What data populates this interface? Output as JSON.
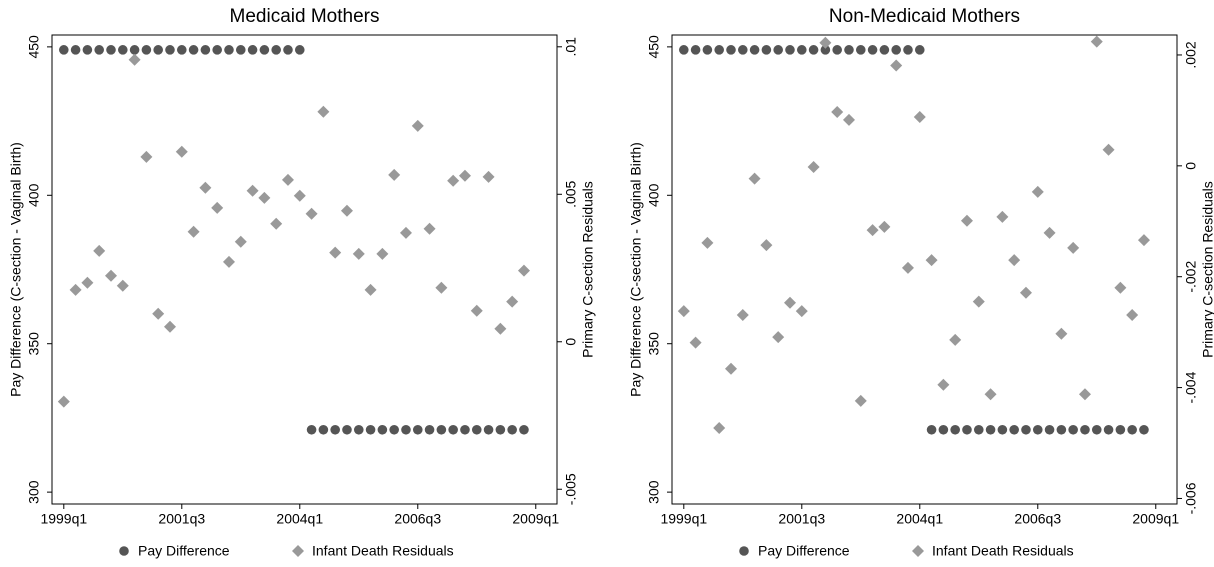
{
  "chart_data": [
    {
      "type": "scatter",
      "title": "Medicaid Mothers",
      "y_label": "Pay Difference (C-section - Vaginal Birth)",
      "y2_label": "Primary C-section Residuals",
      "x": [
        156,
        157,
        158,
        159,
        160,
        161,
        162,
        163,
        164,
        165,
        166,
        167,
        168,
        169,
        170,
        171,
        172,
        173,
        174,
        175,
        176,
        177,
        178,
        179,
        180,
        181,
        182,
        183,
        184,
        185,
        186,
        187,
        188,
        189,
        190,
        191,
        192,
        193,
        194,
        195
      ],
      "xlim": [
        155,
        197.8
      ],
      "xticks": [
        {
          "value": 156,
          "label": "1999q1"
        },
        {
          "value": 166,
          "label": "2001q3"
        },
        {
          "value": 176,
          "label": "2004q1"
        },
        {
          "value": 186,
          "label": "2006q3"
        },
        {
          "value": 196,
          "label": "2009q1"
        }
      ],
      "ylim": [
        296,
        454
      ],
      "yticks": [
        300,
        350,
        400,
        450
      ],
      "y2lim": [
        -0.0055,
        0.0104
      ],
      "y2ticks": [
        {
          "value": -0.005,
          "label": "-.005"
        },
        0,
        {
          "value": 0.005,
          "label": ".005"
        },
        {
          "value": 0.01,
          "label": ".01"
        }
      ],
      "series": [
        {
          "name": "Pay Difference",
          "color": "#555555",
          "marker": "circle",
          "values": [
            449,
            449,
            449,
            449,
            449,
            449,
            449,
            449,
            449,
            449,
            449,
            449,
            449,
            449,
            449,
            449,
            449,
            449,
            449,
            449,
            449,
            321,
            321,
            321,
            321,
            321,
            321,
            321,
            321,
            321,
            321,
            321,
            321,
            321,
            321,
            321,
            321,
            321,
            321,
            321
          ]
        },
        {
          "name": "Infant Death Residuals",
          "color": "#999999",
          "marker": "diamond",
          "axis": "y2",
          "values": [
            -0.00203,
            0.00176,
            0.002,
            0.00308,
            0.00224,
            0.0019,
            0.00956,
            0.00627,
            0.00095,
            0.00051,
            0.00644,
            0.00373,
            0.00522,
            0.00454,
            0.00271,
            0.00339,
            0.00512,
            0.00488,
            0.004,
            0.00549,
            0.00495,
            0.00434,
            0.0078,
            0.00302,
            0.00444,
            0.00298,
            0.00176,
            0.00298,
            0.00566,
            0.00369,
            0.00732,
            0.00383,
            0.00183,
            0.00546,
            0.00563,
            0.00105,
            0.00559,
            0.00044,
            0.00136,
            0.00241
          ]
        }
      ]
    },
    {
      "type": "scatter",
      "title": "Non-Medicaid Mothers",
      "y_label": "Pay Difference (C-section - Vaginal Birth)",
      "y2_label": "Primary C-section Residuals",
      "x": [
        156,
        157,
        158,
        159,
        160,
        161,
        162,
        163,
        164,
        165,
        166,
        167,
        168,
        169,
        170,
        171,
        172,
        173,
        174,
        175,
        176,
        177,
        178,
        179,
        180,
        181,
        182,
        183,
        184,
        185,
        186,
        187,
        188,
        189,
        190,
        191,
        192,
        193,
        194,
        195
      ],
      "xlim": [
        155,
        197.8
      ],
      "xticks": [
        {
          "value": 156,
          "label": "1999q1"
        },
        {
          "value": 166,
          "label": "2001q3"
        },
        {
          "value": 176,
          "label": "2004q1"
        },
        {
          "value": 186,
          "label": "2006q3"
        },
        {
          "value": 196,
          "label": "2009q1"
        }
      ],
      "ylim": [
        296,
        454
      ],
      "yticks": [
        300,
        350,
        400,
        450
      ],
      "y2lim": [
        -0.0061,
        0.00236
      ],
      "y2ticks": [
        {
          "value": -0.006,
          "label": "-.006"
        },
        {
          "value": -0.004,
          "label": "-.004"
        },
        {
          "value": -0.002,
          "label": "-.002"
        },
        0,
        {
          "value": 0.002,
          "label": ".002"
        }
      ],
      "series": [
        {
          "name": "Pay Difference",
          "color": "#555555",
          "marker": "circle",
          "values": [
            449,
            449,
            449,
            449,
            449,
            449,
            449,
            449,
            449,
            449,
            449,
            449,
            449,
            449,
            449,
            449,
            449,
            449,
            449,
            449,
            449,
            321,
            321,
            321,
            321,
            321,
            321,
            321,
            321,
            321,
            321,
            321,
            321,
            321,
            321,
            321,
            321,
            321,
            321,
            321
          ]
        },
        {
          "name": "Infant Death Residuals",
          "color": "#999999",
          "marker": "diamond",
          "axis": "y2",
          "values": [
            -0.00262,
            -0.00319,
            -0.00139,
            -0.00473,
            -0.00366,
            -0.00269,
            -0.00023,
            -0.00143,
            -0.00309,
            -0.00247,
            -0.00262,
            -2e-05,
            0.00222,
            0.00097,
            0.00083,
            -0.00424,
            -0.00116,
            -0.0011,
            0.00181,
            -0.00184,
            0.00088,
            -0.0017,
            -0.00395,
            -0.00314,
            -0.00099,
            -0.00245,
            -0.00412,
            -0.00092,
            -0.0017,
            -0.00229,
            -0.00047,
            -0.00121,
            -0.00303,
            -0.00148,
            -0.00412,
            0.00224,
            0.00029,
            -0.0022,
            -0.00269,
            -0.00134
          ]
        }
      ]
    }
  ]
}
